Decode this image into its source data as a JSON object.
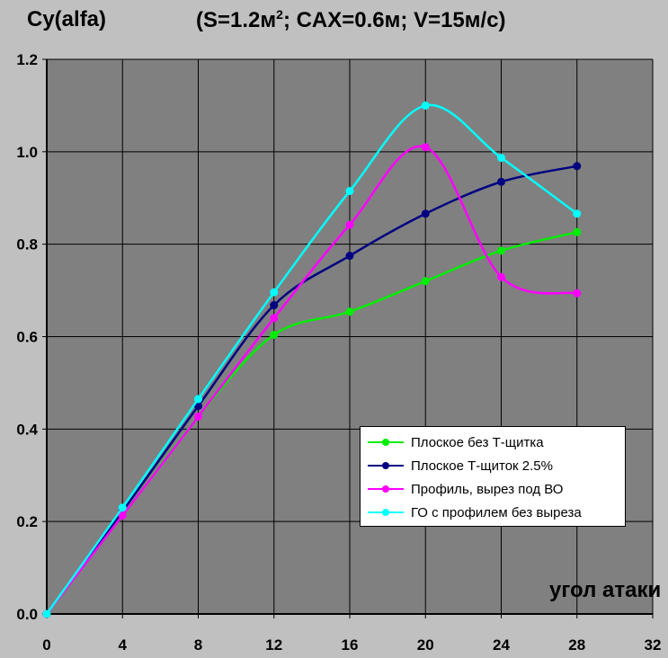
{
  "chart_data": {
    "type": "line",
    "title_left": "Cy(alfa)",
    "title_main_prefix": "(S=1.2м",
    "title_main_sup": "2",
    "title_main_suffix": "; CAX=0.6м; V=15м/с)",
    "xlabel": "угол атаки",
    "ylabel": "Cy(alfa)",
    "xlim": [
      0,
      32
    ],
    "ylim": [
      0.0,
      1.2
    ],
    "x_ticks": [
      "0",
      "4",
      "8",
      "12",
      "16",
      "20",
      "24",
      "28",
      "32"
    ],
    "y_ticks": [
      "0.0",
      "0.2",
      "0.4",
      "0.6",
      "0.8",
      "1.0",
      "1.2"
    ],
    "grid": true,
    "legend_position": "bottom-right",
    "x": [
      0,
      4,
      8,
      12,
      16,
      20,
      24,
      28
    ],
    "series": [
      {
        "name": "Плоское без Т-щитка",
        "color": "#00EE00",
        "values": [
          0.0,
          0.213,
          0.427,
          0.604,
          0.654,
          0.72,
          0.786,
          0.826
        ]
      },
      {
        "name": "Плоское Т-щиток 2.5%",
        "color": "#000080",
        "values": [
          0.0,
          0.222,
          0.45,
          0.668,
          0.775,
          0.866,
          0.935,
          0.969
        ]
      },
      {
        "name": "Профиль, вырез под ВО",
        "color": "#FF00FF",
        "values": [
          0.0,
          0.213,
          0.427,
          0.64,
          0.842,
          1.01,
          0.729,
          0.694
        ]
      },
      {
        "name": "ГО с профилем без выреза",
        "color": "#00FFFF",
        "values": [
          0.0,
          0.23,
          0.465,
          0.696,
          0.915,
          1.1,
          0.987,
          0.866
        ]
      }
    ]
  }
}
